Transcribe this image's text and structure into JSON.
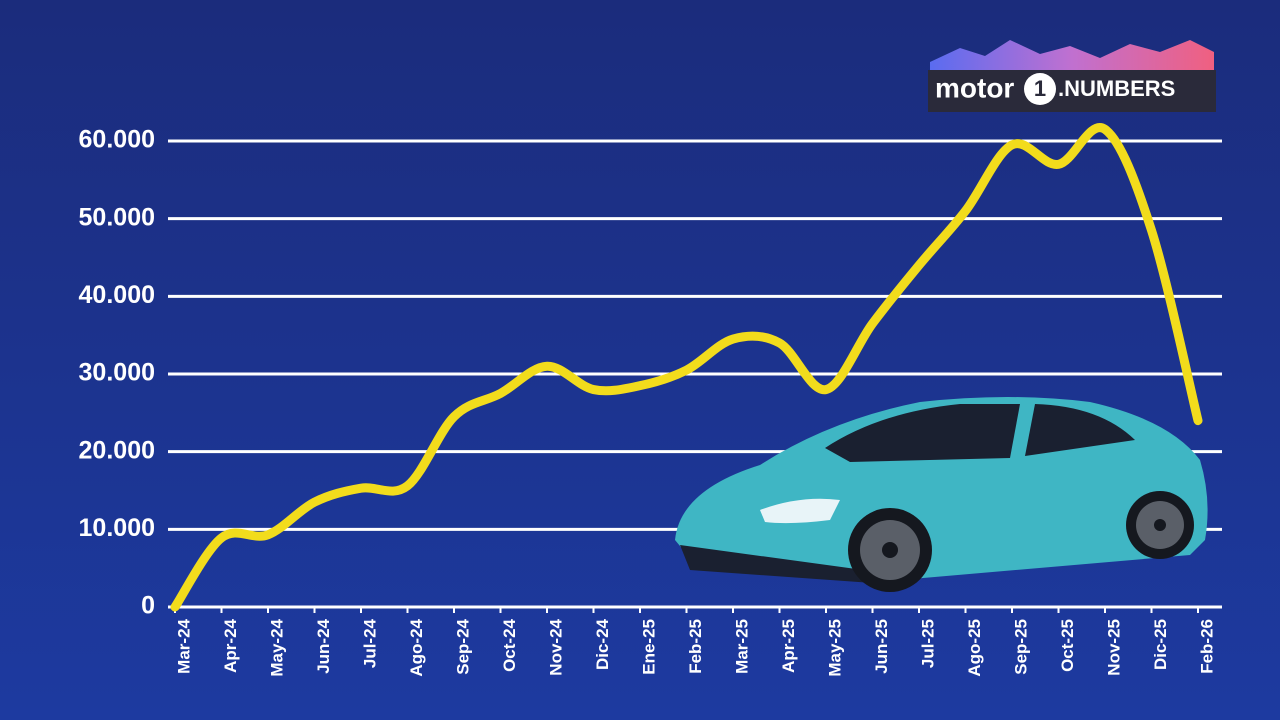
{
  "chart_data": {
    "type": "line",
    "categories": [
      "Mar-24",
      "Apr-24",
      "May-24",
      "Jun-24",
      "Jul-24",
      "Ago-24",
      "Sep-24",
      "Oct-24",
      "Nov-24",
      "Dic-24",
      "Ene-25",
      "Feb-25",
      "Mar-25",
      "Apr-25",
      "May-25",
      "Jun-25",
      "Jul-25",
      "Ago-25",
      "Sep-25",
      "Oct-25",
      "Nov-25",
      "Dic-25",
      "Feb-26"
    ],
    "values": [
      0,
      8900,
      9300,
      13500,
      15300,
      15600,
      24500,
      27500,
      31000,
      28000,
      28500,
      30500,
      34500,
      34000,
      28000,
      36500,
      44000,
      51000,
      59500,
      57000,
      61500,
      48500,
      24000
    ],
    "color": "#f2dc1c",
    "ylim": [
      0,
      60000
    ],
    "yticks": [
      0,
      {
        "value": 10000,
        "label": "10.000"
      },
      {
        "value": 20000,
        "label": "20.000"
      },
      {
        "value": 30000,
        "label": "30.000"
      },
      {
        "value": 40000,
        "label": "40.000"
      },
      {
        "value": 50000,
        "label": "50.000"
      },
      {
        "value": 60000,
        "label": "60.000"
      }
    ],
    "grid": true
  },
  "logo": {
    "brand": "motor",
    "number": "1",
    "suffix": ".NUMBERS"
  }
}
